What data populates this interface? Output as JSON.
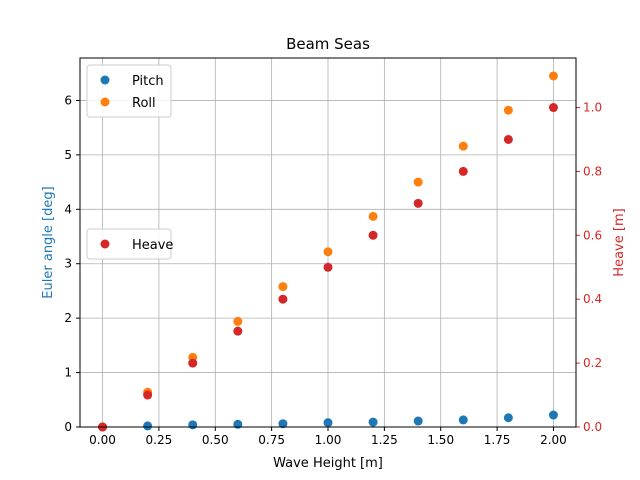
{
  "chart_data": {
    "type": "scatter",
    "title": "Beam Seas",
    "xlabel": "Wave Height [m]",
    "ylabel": "Euler angle [deg]",
    "y2label": "Heave [m]",
    "xlim": [
      -0.1,
      2.1
    ],
    "ylim": [
      0,
      6.78
    ],
    "y2lim": [
      0,
      1.155
    ],
    "grid": true,
    "x": [
      0.0,
      0.2,
      0.4,
      0.6,
      0.8,
      1.0,
      1.2,
      1.4,
      1.6,
      1.8,
      2.0
    ],
    "xticks": [
      "0.00",
      "0.25",
      "0.50",
      "0.75",
      "1.00",
      "1.25",
      "1.50",
      "1.75",
      "2.00"
    ],
    "yticks": [
      "0",
      "1",
      "2",
      "3",
      "4",
      "5",
      "6"
    ],
    "y2ticks": [
      "0.0",
      "0.2",
      "0.4",
      "0.6",
      "0.8",
      "1.0"
    ],
    "series": [
      {
        "name": "Pitch",
        "axis": "left",
        "color": "#1f77b4",
        "legend": "top-left",
        "values": [
          0.0,
          0.02,
          0.04,
          0.05,
          0.06,
          0.08,
          0.09,
          0.11,
          0.13,
          0.17,
          0.22
        ]
      },
      {
        "name": "Roll",
        "axis": "left",
        "color": "#ff7f0e",
        "legend": "top-left",
        "values": [
          0.0,
          0.64,
          1.28,
          1.94,
          2.58,
          3.22,
          3.87,
          4.5,
          5.16,
          5.82,
          6.45
        ]
      },
      {
        "name": "Heave",
        "axis": "right",
        "color": "#d62728",
        "legend": "center-left",
        "values": [
          0.0,
          0.1,
          0.2,
          0.3,
          0.4,
          0.5,
          0.6,
          0.7,
          0.8,
          0.9,
          1.0
        ]
      }
    ]
  }
}
